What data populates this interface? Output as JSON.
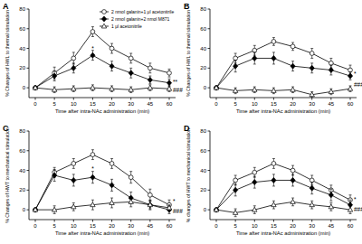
{
  "chart_data": [
    {
      "type": "line",
      "title": "A",
      "x_label": "Time after intra-NAc administration (min)",
      "y_label": "% Changes of HWL to thermal stimulation",
      "categories": [
        "0",
        "5",
        "10",
        "15",
        "20",
        "30",
        "45",
        "60"
      ],
      "ylim": [
        -10,
        80
      ],
      "yticks": [
        0,
        20,
        40,
        60,
        80
      ],
      "legend": "upper right",
      "series": [
        {
          "name": "2 nmol galanin+1 μl acetonitrile",
          "color": "#000000",
          "marker": "open-circle",
          "line_style": "solid",
          "values": [
            0,
            15,
            30,
            57,
            40,
            30,
            20,
            15
          ],
          "errors": [
            0,
            6,
            6,
            5,
            5,
            5,
            5,
            4
          ]
        },
        {
          "name": "2 nmol galanin+2 nmol M871",
          "color": "#000000",
          "marker": "diamond",
          "line_style": "solid",
          "values": [
            0,
            12,
            20,
            33,
            22,
            15,
            8,
            5
          ],
          "errors": [
            0,
            5,
            5,
            5,
            5,
            5,
            4,
            4
          ]
        },
        {
          "name": "1 μl acetonitrile",
          "color": "#000000",
          "marker": "open-triangle",
          "line_style": "solid",
          "values": [
            0,
            -2,
            -1,
            0,
            -1,
            -2,
            0,
            -1
          ],
          "errors": [
            0,
            3,
            3,
            3,
            3,
            3,
            3,
            3
          ]
        }
      ],
      "annotations": [
        {
          "text": "*",
          "x": "15",
          "y": 40
        },
        {
          "text": "**",
          "x": "60",
          "y": 6
        },
        {
          "text": "###",
          "x": "60",
          "y": -3
        }
      ]
    },
    {
      "type": "line",
      "title": "B",
      "x_label": "Time after intra-NAc administration (min)",
      "y_label": "% Changes of HWL to thermal stimulation",
      "categories": [
        "0",
        "5",
        "10",
        "15",
        "20",
        "30",
        "45",
        "60"
      ],
      "ylim": [
        -10,
        80
      ],
      "yticks": [
        0,
        20,
        40,
        60,
        80
      ],
      "series": [
        {
          "color": "#000000",
          "marker": "open-circle",
          "line_style": "solid",
          "values": [
            0,
            30,
            38,
            47,
            42,
            35,
            25,
            18
          ],
          "errors": [
            0,
            5,
            5,
            4,
            4,
            5,
            5,
            5
          ]
        },
        {
          "color": "#000000",
          "marker": "diamond",
          "line_style": "solid",
          "values": [
            0,
            22,
            30,
            30,
            22,
            20,
            18,
            12
          ],
          "errors": [
            0,
            6,
            6,
            6,
            5,
            5,
            5,
            4
          ]
        },
        {
          "color": "#000000",
          "marker": "open-triangle",
          "line_style": "solid",
          "values": [
            0,
            -3,
            -2,
            -3,
            -2,
            -7,
            -4,
            -1
          ],
          "errors": [
            0,
            3,
            3,
            3,
            3,
            3,
            3,
            3
          ]
        }
      ],
      "annotations": [
        {
          "text": "*",
          "x": "60",
          "y": 14
        },
        {
          "text": "###",
          "x": "60",
          "y": 3
        }
      ]
    },
    {
      "type": "line",
      "title": "C",
      "x_label": "Time after intra-NAc administration (min)",
      "y_label": "% Changes of HWT to mechanical stimulation",
      "categories": [
        "0",
        "5",
        "10",
        "15",
        "20",
        "30",
        "45",
        "60"
      ],
      "ylim": [
        -10,
        80
      ],
      "yticks": [
        0,
        20,
        40,
        60,
        80
      ],
      "series": [
        {
          "color": "#000000",
          "marker": "open-circle",
          "line_style": "solid",
          "values": [
            0,
            38,
            47,
            56,
            47,
            33,
            15,
            5
          ],
          "errors": [
            0,
            5,
            5,
            5,
            5,
            6,
            6,
            5
          ]
        },
        {
          "color": "#000000",
          "marker": "diamond",
          "line_style": "solid",
          "values": [
            0,
            35,
            30,
            33,
            25,
            12,
            5,
            0
          ],
          "errors": [
            0,
            6,
            6,
            6,
            6,
            6,
            5,
            4
          ]
        },
        {
          "color": "#000000",
          "marker": "open-triangle",
          "line_style": "solid",
          "values": [
            0,
            0,
            3,
            5,
            7,
            8,
            5,
            2
          ],
          "errors": [
            0,
            4,
            4,
            5,
            5,
            5,
            4,
            3
          ]
        }
      ],
      "annotations": [
        {
          "text": "*",
          "x": "15",
          "y": 41
        },
        {
          "text": "*",
          "x": "60",
          "y": 8
        },
        {
          "text": "###",
          "x": "60",
          "y": -2
        }
      ]
    },
    {
      "type": "line",
      "title": "D",
      "x_label": "Time after intra-NAc administration (min)",
      "y_label": "% changes of HWT to mechanical stimulation",
      "categories": [
        "0",
        "5",
        "10",
        "15",
        "20",
        "30",
        "45",
        "60"
      ],
      "ylim": [
        -10,
        80
      ],
      "yticks": [
        0,
        20,
        40,
        60,
        80
      ],
      "series": [
        {
          "color": "#000000",
          "marker": "open-circle",
          "line_style": "solid",
          "values": [
            0,
            30,
            38,
            47,
            40,
            30,
            20,
            10
          ],
          "errors": [
            0,
            5,
            5,
            5,
            5,
            5,
            5,
            5
          ]
        },
        {
          "color": "#000000",
          "marker": "diamond",
          "line_style": "solid",
          "values": [
            0,
            20,
            28,
            30,
            30,
            22,
            15,
            5
          ],
          "errors": [
            0,
            6,
            6,
            6,
            6,
            6,
            6,
            5
          ]
        },
        {
          "color": "#000000",
          "marker": "open-triangle",
          "line_style": "solid",
          "values": [
            0,
            -3,
            0,
            5,
            8,
            5,
            3,
            0
          ],
          "errors": [
            0,
            4,
            4,
            4,
            4,
            4,
            4,
            4
          ]
        }
      ],
      "annotations": [
        {
          "text": "*",
          "x": "60",
          "y": 10
        },
        {
          "text": "###",
          "x": "60",
          "y": 0
        }
      ]
    }
  ]
}
